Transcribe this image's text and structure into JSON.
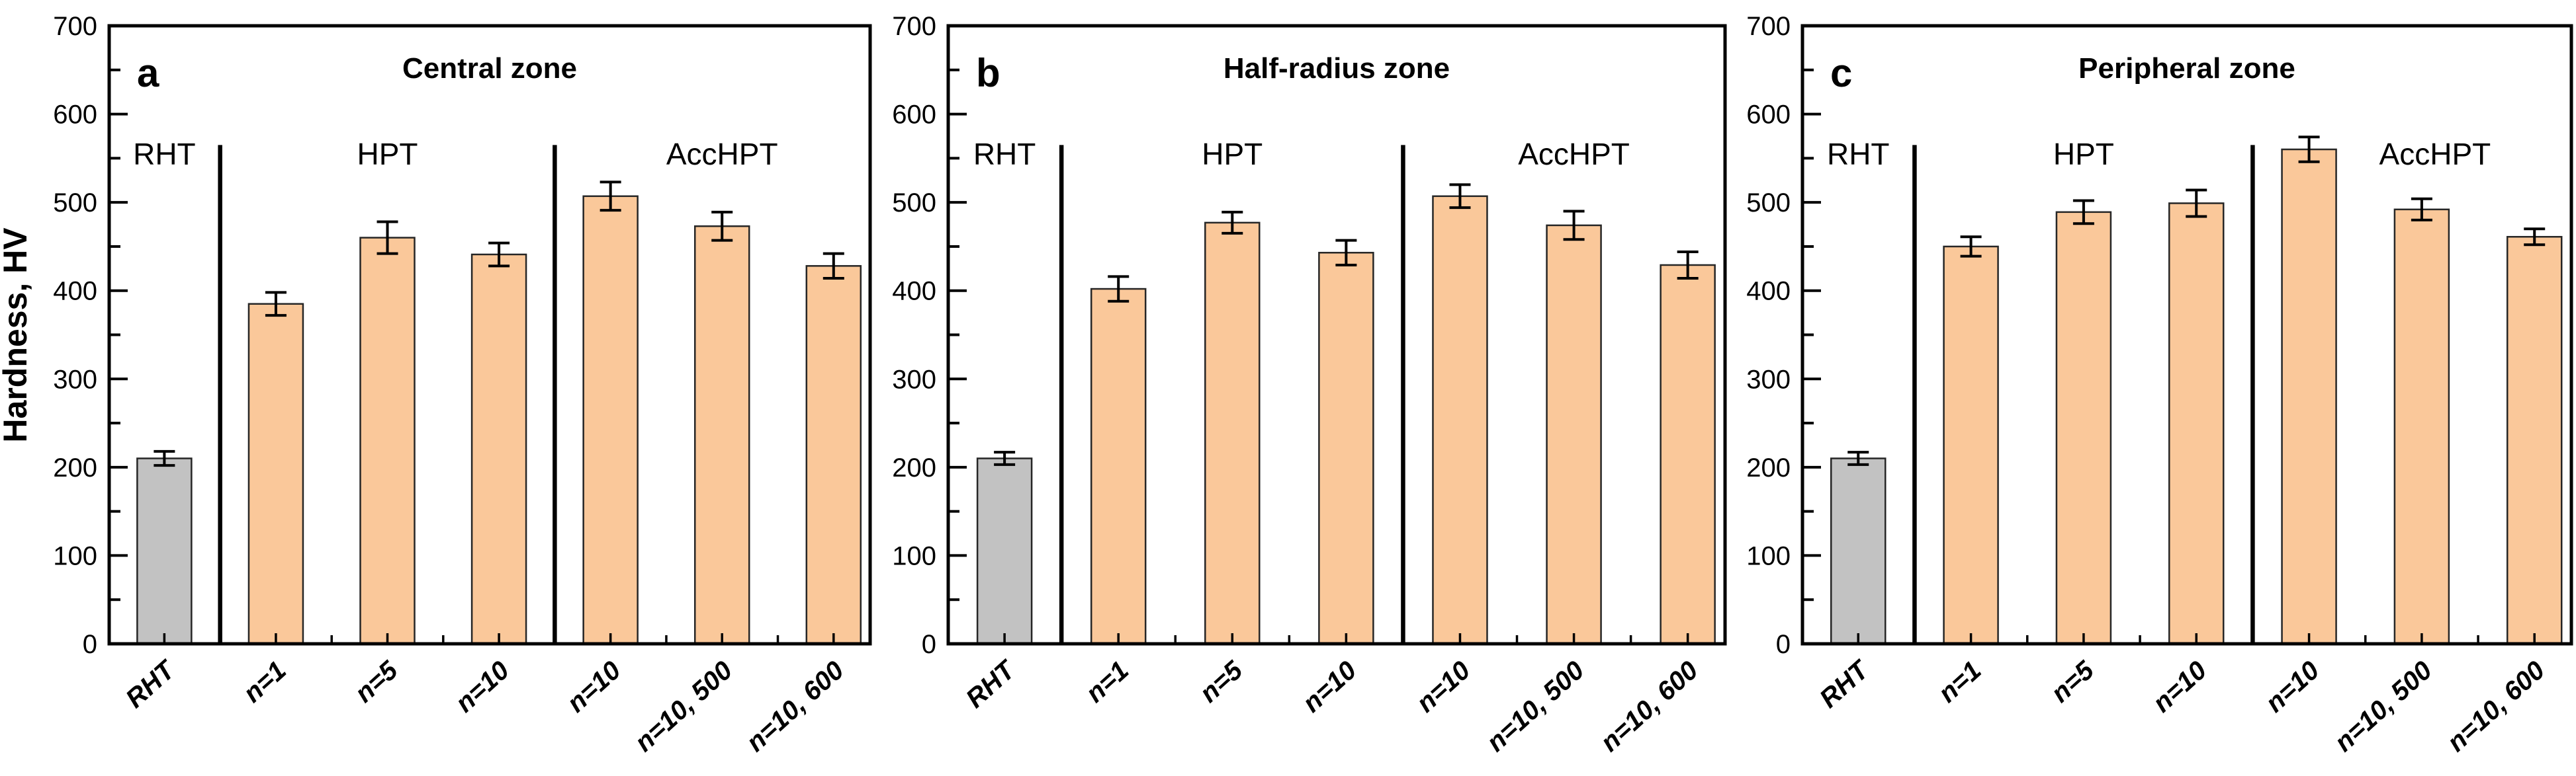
{
  "figure": {
    "ylabel": "Hardness, HV",
    "background": "#ffffff"
  },
  "style": {
    "bar_fill_orange": "#fac89a",
    "bar_fill_gray": "#c2c2c2",
    "bar_border": "#262626",
    "axis_color": "#000000",
    "text_color": "#000000"
  },
  "chart_data": [
    {
      "type": "bar",
      "panel_letter": "a",
      "title": "Central zone",
      "ylabel": "Hardness, HV",
      "ylim": [
        0,
        700
      ],
      "ytick_step": 100,
      "ytick_labels": [
        "0",
        "100",
        "200",
        "300",
        "400",
        "500",
        "600",
        "700"
      ],
      "grid": false,
      "legend": "none",
      "categories": [
        "RHT",
        "n=1",
        "n=5",
        "n=10",
        "n=10",
        "n=10, 500",
        "n=10, 600"
      ],
      "values": [
        210,
        385,
        460,
        441,
        507,
        473,
        428
      ],
      "errors": [
        8,
        13,
        18,
        13,
        16,
        16,
        14
      ],
      "bar_colors": [
        "gray",
        "orange",
        "orange",
        "orange",
        "orange",
        "orange",
        "orange"
      ],
      "groups": [
        {
          "label": "RHT",
          "center_bar": 0
        },
        {
          "label": "HPT",
          "center_bar": 2
        },
        {
          "label": "AccHPT",
          "center_bar": 5
        }
      ],
      "divider_after_bars": [
        0,
        3
      ]
    },
    {
      "type": "bar",
      "panel_letter": "b",
      "title": "Half-radius zone",
      "ylabel": "",
      "ylim": [
        0,
        700
      ],
      "ytick_step": 100,
      "ytick_labels": [
        "0",
        "100",
        "200",
        "300",
        "400",
        "500",
        "600",
        "700"
      ],
      "grid": false,
      "legend": "none",
      "categories": [
        "RHT",
        "n=1",
        "n=5",
        "n=10",
        "n=10",
        "n=10, 500",
        "n=10, 600"
      ],
      "values": [
        210,
        402,
        477,
        443,
        507,
        474,
        429
      ],
      "errors": [
        7,
        14,
        12,
        14,
        13,
        16,
        15
      ],
      "bar_colors": [
        "gray",
        "orange",
        "orange",
        "orange",
        "orange",
        "orange",
        "orange"
      ],
      "groups": [
        {
          "label": "RHT",
          "center_bar": 0
        },
        {
          "label": "HPT",
          "center_bar": 2
        },
        {
          "label": "AccHPT",
          "center_bar": 5
        }
      ],
      "divider_after_bars": [
        0,
        3
      ]
    },
    {
      "type": "bar",
      "panel_letter": "c",
      "title": "Peripheral zone",
      "ylabel": "",
      "ylim": [
        0,
        700
      ],
      "ytick_step": 100,
      "ytick_labels": [
        "0",
        "100",
        "200",
        "300",
        "400",
        "500",
        "600",
        "700"
      ],
      "grid": false,
      "legend": "none",
      "categories": [
        "RHT",
        "n=1",
        "n=5",
        "n=10",
        "n=10",
        "n=10, 500",
        "n=10, 600"
      ],
      "values": [
        210,
        450,
        489,
        499,
        560,
        492,
        461
      ],
      "errors": [
        7,
        11,
        13,
        15,
        14,
        12,
        9
      ],
      "bar_colors": [
        "gray",
        "orange",
        "orange",
        "orange",
        "orange",
        "orange",
        "orange"
      ],
      "groups": [
        {
          "label": "RHT",
          "center_bar": 0
        },
        {
          "label": "HPT",
          "center_bar": 2
        },
        {
          "label": "AccHPT",
          "center_bar": 5
        }
      ],
      "divider_after_bars": [
        0,
        3
      ]
    }
  ]
}
